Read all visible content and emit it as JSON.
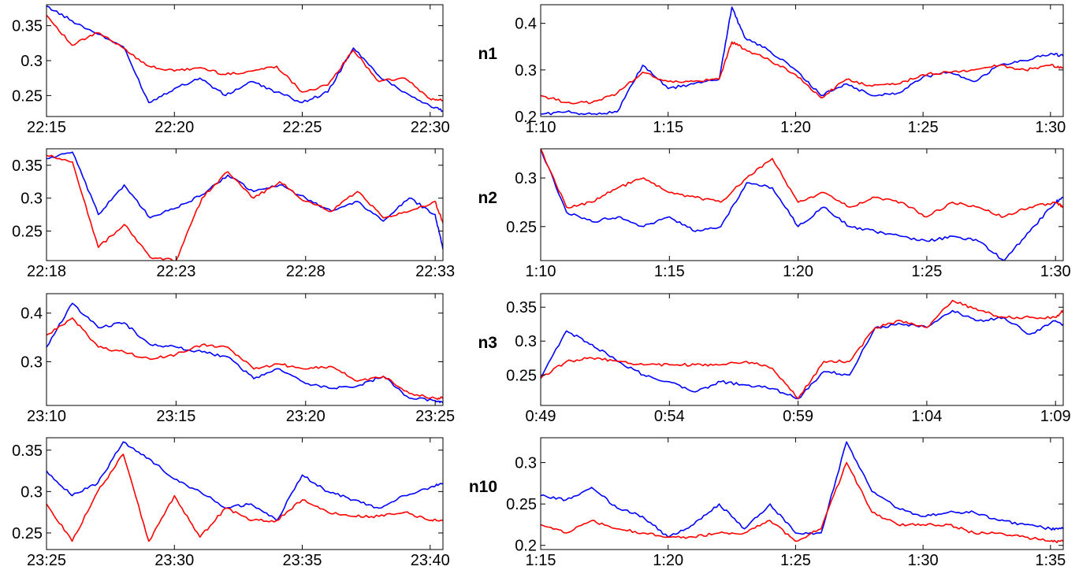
{
  "colors": {
    "series_a": "#0000ff",
    "series_b": "#ff0000",
    "axes": "#000000",
    "background": "#ffffff"
  },
  "chart_data": [
    {
      "type": "line",
      "row_label": "",
      "xticks": [
        "22:15",
        "22:20",
        "22:25",
        "22:30"
      ],
      "x": [
        "22:15",
        "22:16",
        "22:17",
        "22:18",
        "22:19",
        "22:20",
        "22:21",
        "22:22",
        "22:23",
        "22:24",
        "22:25",
        "22:26",
        "22:27",
        "22:28",
        "22:29",
        "22:30",
        "22:30.5"
      ],
      "xlim": [
        "22:15",
        "22:30.5"
      ],
      "ylim": [
        0.22,
        0.38
      ],
      "yticks": [
        0.25,
        0.3,
        0.35
      ],
      "series": [
        {
          "color": "#0000ff",
          "values": [
            0.378,
            0.357,
            0.338,
            0.32,
            0.24,
            0.26,
            0.275,
            0.25,
            0.27,
            0.255,
            0.24,
            0.255,
            0.318,
            0.278,
            0.255,
            0.235,
            0.228
          ]
        },
        {
          "color": "#ff0000",
          "values": [
            0.365,
            0.322,
            0.34,
            0.318,
            0.292,
            0.285,
            0.29,
            0.28,
            0.285,
            0.292,
            0.255,
            0.265,
            0.315,
            0.27,
            0.275,
            0.245,
            0.243
          ]
        }
      ]
    },
    {
      "type": "line",
      "row_label": "n1",
      "xticks": [
        "1:10",
        "1:15",
        "1:20",
        "1:25",
        "1:30"
      ],
      "x": [
        "1:10",
        "1:11",
        "1:12",
        "1:13",
        "1:14",
        "1:15",
        "1:16",
        "1:17",
        "1:17.5",
        "1:18",
        "1:19",
        "1:20",
        "1:21",
        "1:22",
        "1:23",
        "1:24",
        "1:25",
        "1:26",
        "1:27",
        "1:28",
        "1:29",
        "1:30",
        "1:30.5"
      ],
      "xlim": [
        "1:10",
        "1:30.5"
      ],
      "ylim": [
        0.2,
        0.44
      ],
      "yticks": [
        0.2,
        0.3,
        0.4
      ],
      "series": [
        {
          "color": "#0000ff",
          "values": [
            0.205,
            0.21,
            0.205,
            0.21,
            0.31,
            0.26,
            0.27,
            0.28,
            0.435,
            0.37,
            0.34,
            0.3,
            0.245,
            0.27,
            0.245,
            0.25,
            0.285,
            0.295,
            0.275,
            0.31,
            0.32,
            0.335,
            0.33
          ]
        },
        {
          "color": "#ff0000",
          "values": [
            0.245,
            0.23,
            0.23,
            0.25,
            0.295,
            0.275,
            0.275,
            0.28,
            0.36,
            0.345,
            0.32,
            0.29,
            0.24,
            0.28,
            0.265,
            0.27,
            0.29,
            0.295,
            0.3,
            0.31,
            0.3,
            0.31,
            0.305
          ]
        }
      ]
    },
    {
      "type": "line",
      "row_label": "",
      "xticks": [
        "22:18",
        "22:23",
        "22:28",
        "22:33"
      ],
      "x": [
        "22:18",
        "22:19",
        "22:20",
        "22:21",
        "22:22",
        "22:23",
        "22:24",
        "22:25",
        "22:26",
        "22:27",
        "22:28",
        "22:29",
        "22:30",
        "22:31",
        "22:32",
        "22:33",
        "22:33.3"
      ],
      "xlim": [
        "22:18",
        "22:33.3"
      ],
      "ylim": [
        0.205,
        0.375
      ],
      "yticks": [
        0.25,
        0.3,
        0.35
      ],
      "series": [
        {
          "color": "#0000ff",
          "values": [
            0.36,
            0.37,
            0.275,
            0.32,
            0.27,
            0.285,
            0.305,
            0.335,
            0.31,
            0.32,
            0.3,
            0.28,
            0.295,
            0.265,
            0.3,
            0.275,
            0.222
          ]
        },
        {
          "color": "#ff0000",
          "values": [
            0.365,
            0.355,
            0.225,
            0.26,
            0.21,
            0.205,
            0.3,
            0.34,
            0.3,
            0.325,
            0.295,
            0.28,
            0.31,
            0.27,
            0.28,
            0.295,
            0.262
          ]
        }
      ]
    },
    {
      "type": "line",
      "row_label": "n2",
      "xticks": [
        "1:10",
        "1:15",
        "1:20",
        "1:25",
        "1:30"
      ],
      "x": [
        "1:10",
        "1:11",
        "1:12",
        "1:13",
        "1:14",
        "1:15",
        "1:16",
        "1:17",
        "1:18",
        "1:19",
        "1:20",
        "1:21",
        "1:22",
        "1:23",
        "1:24",
        "1:25",
        "1:26",
        "1:27",
        "1:28",
        "1:29",
        "1:30",
        "1:30.3"
      ],
      "xlim": [
        "1:10",
        "1:30.3"
      ],
      "ylim": [
        0.215,
        0.33
      ],
      "yticks": [
        0.25,
        0.3
      ],
      "series": [
        {
          "color": "#0000ff",
          "values": [
            0.33,
            0.265,
            0.255,
            0.26,
            0.25,
            0.26,
            0.245,
            0.25,
            0.295,
            0.29,
            0.25,
            0.27,
            0.25,
            0.245,
            0.24,
            0.235,
            0.24,
            0.235,
            0.215,
            0.245,
            0.275,
            0.28
          ]
        },
        {
          "color": "#ff0000",
          "values": [
            0.33,
            0.27,
            0.275,
            0.29,
            0.3,
            0.285,
            0.28,
            0.275,
            0.3,
            0.32,
            0.275,
            0.285,
            0.27,
            0.28,
            0.275,
            0.26,
            0.275,
            0.27,
            0.26,
            0.27,
            0.275,
            0.27
          ]
        }
      ]
    },
    {
      "type": "line",
      "row_label": "",
      "xticks": [
        "23:10",
        "23:15",
        "23:20",
        "23:25"
      ],
      "x": [
        "23:10",
        "23:11",
        "23:12",
        "23:13",
        "23:14",
        "23:15",
        "23:16",
        "23:17",
        "23:18",
        "23:19",
        "23:20",
        "23:21",
        "23:22",
        "23:23",
        "23:24",
        "23:25",
        "23:25.3"
      ],
      "xlim": [
        "23:10",
        "23:25.3"
      ],
      "ylim": [
        0.21,
        0.44
      ],
      "yticks": [
        0.3,
        0.4
      ],
      "series": [
        {
          "color": "#0000ff",
          "values": [
            0.33,
            0.42,
            0.37,
            0.38,
            0.335,
            0.33,
            0.32,
            0.31,
            0.265,
            0.285,
            0.255,
            0.245,
            0.25,
            0.27,
            0.225,
            0.22,
            0.215
          ]
        },
        {
          "color": "#ff0000",
          "values": [
            0.355,
            0.39,
            0.33,
            0.32,
            0.305,
            0.315,
            0.335,
            0.33,
            0.285,
            0.295,
            0.285,
            0.29,
            0.26,
            0.27,
            0.235,
            0.225,
            0.225
          ]
        }
      ]
    },
    {
      "type": "line",
      "row_label": "n3",
      "xticks": [
        "0:49",
        "0:54",
        "0:59",
        "1:04",
        "1:09"
      ],
      "x": [
        "0:49",
        "0:50",
        "0:51",
        "0:52",
        "0:53",
        "0:54",
        "0:55",
        "0:56",
        "0:57",
        "0:58",
        "0:59",
        "1:00",
        "1:01",
        "1:02",
        "1:03",
        "1:04",
        "1:05",
        "1:06",
        "1:07",
        "1:08",
        "1:09",
        "1:09.3"
      ],
      "xlim": [
        "0:49",
        "1:09.3"
      ],
      "ylim": [
        0.205,
        0.37
      ],
      "yticks": [
        0.25,
        0.3,
        0.35
      ],
      "series": [
        {
          "color": "#0000ff",
          "values": [
            0.245,
            0.315,
            0.295,
            0.27,
            0.25,
            0.24,
            0.225,
            0.24,
            0.235,
            0.23,
            0.215,
            0.255,
            0.25,
            0.32,
            0.325,
            0.32,
            0.345,
            0.33,
            0.335,
            0.31,
            0.33,
            0.325
          ]
        },
        {
          "color": "#ff0000",
          "values": [
            0.245,
            0.27,
            0.275,
            0.27,
            0.265,
            0.265,
            0.265,
            0.265,
            0.27,
            0.26,
            0.215,
            0.27,
            0.27,
            0.32,
            0.33,
            0.32,
            0.36,
            0.345,
            0.335,
            0.335,
            0.335,
            0.345
          ]
        }
      ]
    },
    {
      "type": "line",
      "row_label": "",
      "xticks": [
        "23:25",
        "23:30",
        "23:35",
        "23:40"
      ],
      "x": [
        "23:25",
        "23:26",
        "23:27",
        "23:28",
        "23:29",
        "23:30",
        "23:31",
        "23:32",
        "23:33",
        "23:34",
        "23:35",
        "23:36",
        "23:37",
        "23:38",
        "23:39",
        "23:40",
        "23:40.5"
      ],
      "xlim": [
        "23:25",
        "23:40.5"
      ],
      "ylim": [
        0.23,
        0.365
      ],
      "yticks": [
        0.25,
        0.3,
        0.35
      ],
      "series": [
        {
          "color": "#0000ff",
          "values": [
            0.325,
            0.295,
            0.31,
            0.36,
            0.34,
            0.315,
            0.3,
            0.28,
            0.285,
            0.265,
            0.32,
            0.3,
            0.29,
            0.28,
            0.295,
            0.305,
            0.31
          ]
        },
        {
          "color": "#ff0000",
          "values": [
            0.285,
            0.24,
            0.3,
            0.345,
            0.24,
            0.295,
            0.245,
            0.28,
            0.265,
            0.265,
            0.29,
            0.275,
            0.27,
            0.27,
            0.275,
            0.265,
            0.265
          ]
        }
      ]
    },
    {
      "type": "line",
      "row_label": "n10",
      "xticks": [
        "1:15",
        "1:20",
        "1:25",
        "1:30",
        "1:35"
      ],
      "x": [
        "1:15",
        "1:16",
        "1:17",
        "1:18",
        "1:19",
        "1:20",
        "1:21",
        "1:22",
        "1:23",
        "1:24",
        "1:25",
        "1:26",
        "1:27",
        "1:28",
        "1:29",
        "1:30",
        "1:31",
        "1:32",
        "1:33",
        "1:34",
        "1:35",
        "1:35.5"
      ],
      "xlim": [
        "1:15",
        "1:35.5"
      ],
      "ylim": [
        0.195,
        0.33
      ],
      "yticks": [
        0.2,
        0.25,
        0.3
      ],
      "series": [
        {
          "color": "#0000ff",
          "values": [
            0.26,
            0.255,
            0.27,
            0.245,
            0.235,
            0.21,
            0.225,
            0.25,
            0.22,
            0.25,
            0.215,
            0.215,
            0.325,
            0.265,
            0.245,
            0.235,
            0.24,
            0.24,
            0.23,
            0.225,
            0.22,
            0.22
          ]
        },
        {
          "color": "#ff0000",
          "values": [
            0.225,
            0.215,
            0.23,
            0.22,
            0.215,
            0.21,
            0.21,
            0.215,
            0.215,
            0.23,
            0.205,
            0.22,
            0.3,
            0.24,
            0.225,
            0.225,
            0.225,
            0.215,
            0.215,
            0.21,
            0.205,
            0.205
          ]
        }
      ]
    }
  ]
}
